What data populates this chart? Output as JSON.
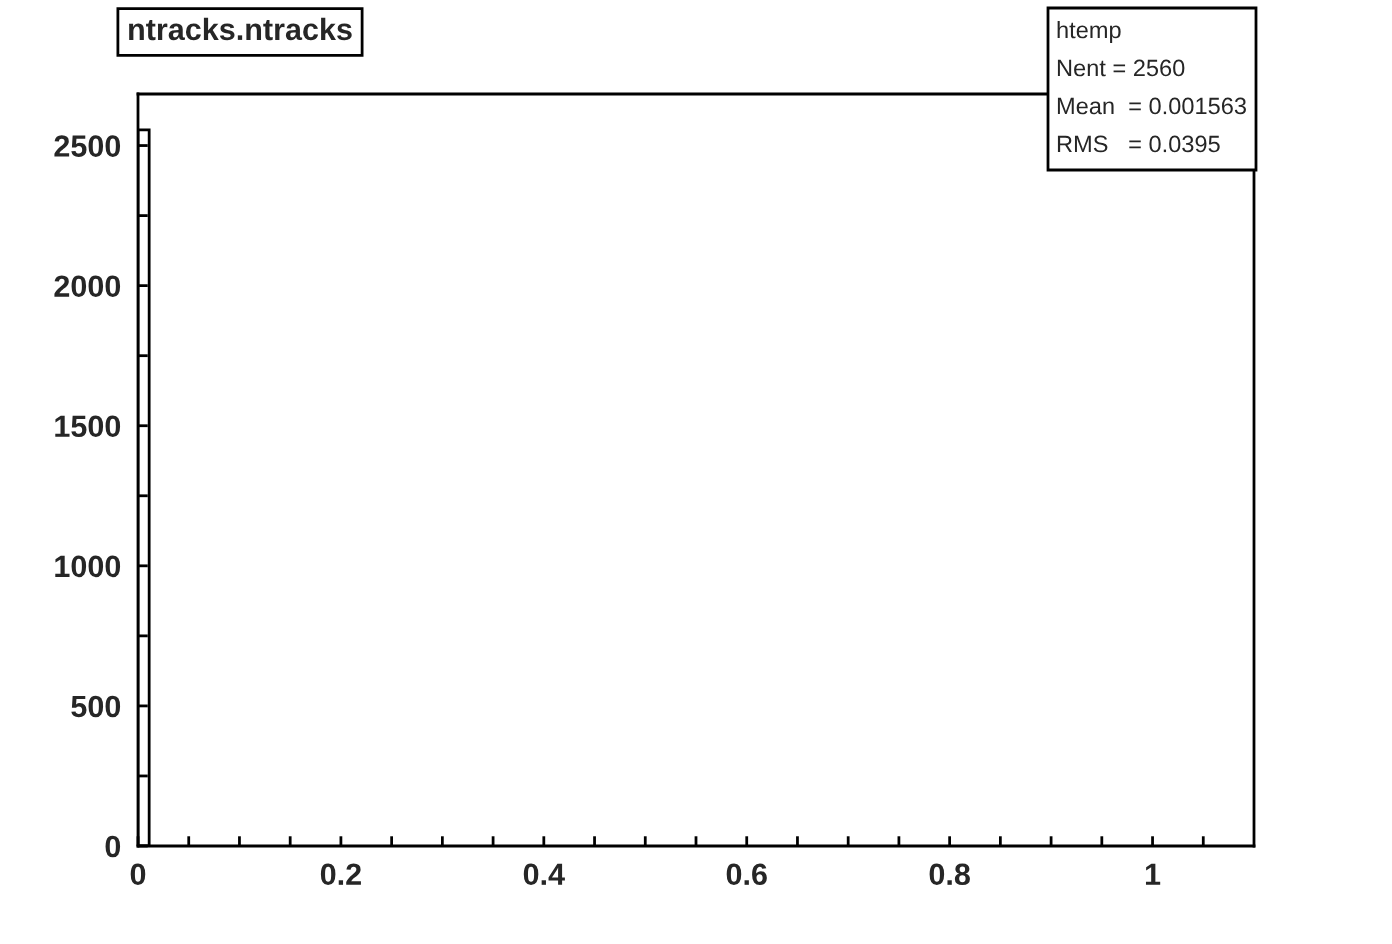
{
  "chart_data": {
    "type": "histogram",
    "title": "ntracks.ntracks",
    "bins": [
      0,
      0.011
    ],
    "values": [
      2556
    ],
    "color": "#ffffff",
    "xlim": [
      0,
      1.1
    ],
    "ylim": [
      0,
      2684
    ],
    "xticks": [
      0,
      {
        "value": 0.05,
        "label": null
      },
      {
        "value": 0.1,
        "label": null
      },
      {
        "value": 0.15,
        "label": null
      },
      0.2,
      {
        "value": 0.25,
        "label": null
      },
      {
        "value": 0.3,
        "label": null
      },
      {
        "value": 0.35,
        "label": null
      },
      0.4,
      {
        "value": 0.45,
        "label": null
      },
      {
        "value": 0.5,
        "label": null
      },
      {
        "value": 0.55,
        "label": null
      },
      0.6,
      {
        "value": 0.65,
        "label": null
      },
      {
        "value": 0.7,
        "label": null
      },
      {
        "value": 0.75,
        "label": null
      },
      0.8,
      {
        "value": 0.85,
        "label": null
      },
      {
        "value": 0.9,
        "label": null
      },
      {
        "value": 0.95,
        "label": null
      },
      1,
      {
        "value": 1.05,
        "label": null
      }
    ],
    "yticks": [
      0,
      {
        "value": 250,
        "label": null
      },
      500,
      {
        "value": 750,
        "label": null
      },
      1000,
      {
        "value": 1250,
        "label": null
      },
      1500,
      {
        "value": 1750,
        "label": null
      },
      2000,
      {
        "value": 2250,
        "label": null
      },
      2500
    ],
    "annotations": [
      "htemp",
      "Nent = 2560",
      "Mean  = 0.001563",
      "RMS   = 0.0395"
    ],
    "grid": false
  }
}
